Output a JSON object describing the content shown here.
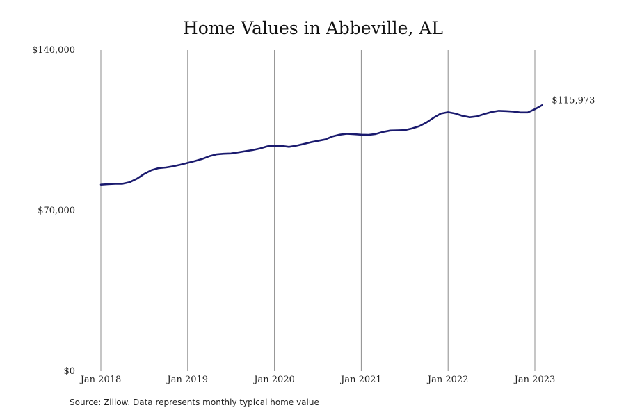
{
  "source_note": "Source: Zillow. Data represents monthly typical home value",
  "chart_data": {
    "type": "line",
    "title": "Home Values in Abbeville, AL",
    "xlabel": "",
    "ylabel": "",
    "ylim": [
      0,
      140000
    ],
    "y_ticks": [
      {
        "value": 0,
        "label": "$0"
      },
      {
        "value": 70000,
        "label": "$70,000"
      },
      {
        "value": 140000,
        "label": "$140,000"
      }
    ],
    "x_ticks": [
      "Jan 2018",
      "Jan 2019",
      "Jan 2020",
      "Jan 2021",
      "Jan 2022",
      "Jan 2023"
    ],
    "grid": "vertical lines at each January",
    "line_color": "#1a1a6e",
    "end_label": "$115,973",
    "series": [
      {
        "x": [
          "2018-01",
          "2018-02",
          "2018-03",
          "2018-04",
          "2018-05",
          "2018-06",
          "2018-07",
          "2018-08",
          "2018-09",
          "2018-10",
          "2018-11",
          "2018-12",
          "2019-01",
          "2019-02",
          "2019-03",
          "2019-04",
          "2019-05",
          "2019-06",
          "2019-07",
          "2019-08",
          "2019-09",
          "2019-10",
          "2019-11",
          "2019-12",
          "2020-01",
          "2020-02",
          "2020-03",
          "2020-04",
          "2020-05",
          "2020-06",
          "2020-07",
          "2020-08",
          "2020-09",
          "2020-10",
          "2020-11",
          "2020-12",
          "2021-01",
          "2021-02",
          "2021-03",
          "2021-04",
          "2021-05",
          "2021-06",
          "2021-07",
          "2021-08",
          "2021-09",
          "2021-10",
          "2021-11",
          "2021-12",
          "2022-01",
          "2022-02",
          "2022-03",
          "2022-04",
          "2022-05",
          "2022-06",
          "2022-07",
          "2022-08",
          "2022-09",
          "2022-10",
          "2022-11",
          "2022-12",
          "2023-01",
          "2023-02"
        ],
        "values": [
          81300,
          81500,
          81700,
          81700,
          82400,
          83900,
          86000,
          87600,
          88500,
          88800,
          89300,
          90000,
          90800,
          91600,
          92500,
          93700,
          94500,
          94800,
          94900,
          95400,
          95900,
          96400,
          97100,
          98000,
          98300,
          98200,
          97800,
          98300,
          99000,
          99800,
          100400,
          101000,
          102300,
          103100,
          103500,
          103300,
          103100,
          103000,
          103400,
          104300,
          104900,
          105000,
          105100,
          105800,
          106800,
          108400,
          110500,
          112300,
          112900,
          112300,
          111300,
          110700,
          111100,
          112100,
          113000,
          113500,
          113400,
          113200,
          112800,
          112800,
          114200,
          115973
        ]
      }
    ]
  }
}
